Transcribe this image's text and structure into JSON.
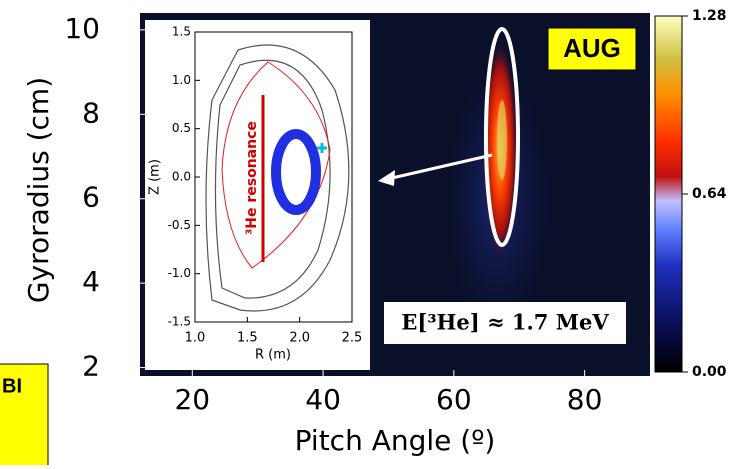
{
  "chart_data": [
    {
      "type": "heatmap",
      "xlabel": "Pitch Angle (º)",
      "ylabel": "Gyroradius (cm)",
      "xlim": [
        12,
        90
      ],
      "xticks": [
        20,
        40,
        60,
        80
      ],
      "ylim": [
        1.8,
        10.4
      ],
      "yticks": [
        2,
        4,
        6,
        8,
        10
      ],
      "colorbar": {
        "lim": [
          0,
          1.28
        ],
        "ticks": [
          {
            "value": 0,
            "label": "0.00"
          },
          {
            "value": 0.64,
            "label": "0.64"
          },
          {
            "value": 1.28,
            "label": "1.28"
          }
        ]
      },
      "annotations": [
        "AUG",
        "E[³He] ≈ 1.7 MeV",
        "BI"
      ]
    },
    {
      "type": "plot",
      "xlabel": "R (m)",
      "ylabel": "Z (m)",
      "annotation": "³He resonance",
      "xlim": [
        1.0,
        2.5
      ],
      "xticks": [
        {
          "value": 1,
          "label": "1.0"
        },
        1.5,
        {
          "value": 2,
          "label": "2.0"
        },
        2.5
      ],
      "ylim": [
        -1.5,
        1.5
      ],
      "yticks": [
        1.5,
        {
          "value": 1,
          "label": "1.0"
        },
        0.5,
        {
          "value": 0,
          "label": "0.0"
        },
        -0.5,
        {
          "value": -1,
          "label": "-1.0"
        },
        -1.5
      ]
    }
  ]
}
